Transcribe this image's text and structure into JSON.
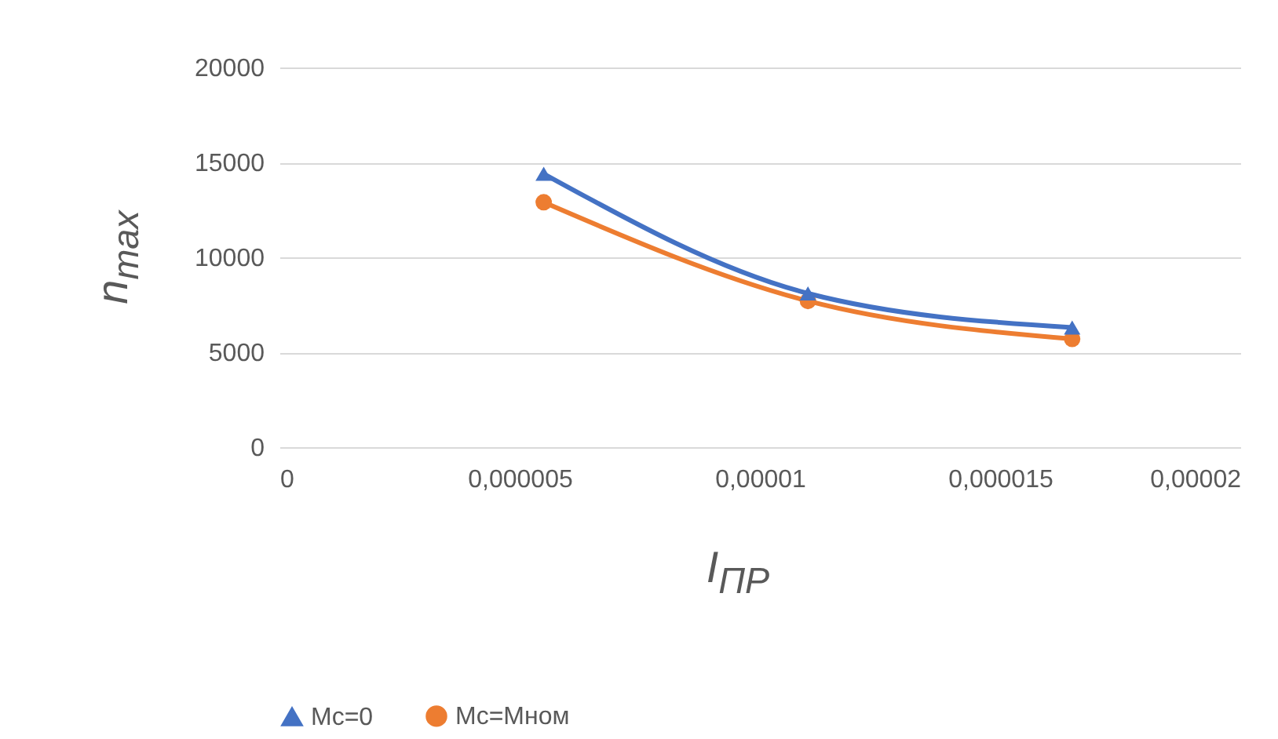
{
  "chart_data": {
    "type": "line",
    "xlabel": "I$_{ПР}$",
    "ylabel": "n$_{max}$",
    "xlim": [
      0,
      2e-05
    ],
    "xticks": [
      0,
      {
        "value": 5e-06,
        "label": "0,000005"
      },
      {
        "value": 1e-05,
        "label": "0,00001"
      },
      {
        "value": 1.5e-05,
        "label": "0,000015"
      },
      {
        "value": 2e-05,
        "label": "0,00002"
      }
    ],
    "ylim": [
      0,
      20000
    ],
    "yticks": [
      0,
      5000,
      10000,
      15000,
      20000
    ],
    "grid": "y",
    "legend": "bottom",
    "x": [
      5.5e-06,
      1.1e-05,
      1.65e-05
    ],
    "series": [
      {
        "name": "Mc=0",
        "color": "#4472c4",
        "marker": "triangle",
        "values": [
          14400,
          8100,
          6300
        ]
      },
      {
        "name": "Mc=Mном",
        "color": "#ed7d31",
        "marker": "circle",
        "values": [
          12900,
          7700,
          5700
        ]
      }
    ]
  }
}
